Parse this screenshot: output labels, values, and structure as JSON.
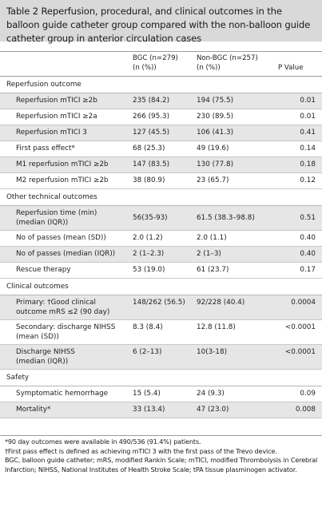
{
  "title": "Table 2   Reperfusion, procedural, and clinical outcomes in the balloon guide catheter group compared with the non-balloon guide catheter group in anterior circulation cases",
  "columns": {
    "bgc": "BGC (n=279) (n (%))",
    "bgc_l1": "BGC (n=279)",
    "bgc_l2": "(n (%))",
    "nonbgc_l1": "Non-BGC (n=257)",
    "nonbgc_l2": "(n (%))",
    "p": "P Value"
  },
  "sections": {
    "reperfusion": "Reperfusion outcome",
    "technical": "Other technical outcomes",
    "clinical": "Clinical outcomes",
    "safety": "Safety"
  },
  "rows": {
    "r1": {
      "label": "Reperfusion mTICI ≥2b",
      "bgc": "235 (84.2)",
      "nonbgc": "194 (75.5)",
      "p": "0.01"
    },
    "r2": {
      "label": "Reperfusion mTICI ≥2a",
      "bgc": "266 (95.3)",
      "nonbgc": "230 (89.5)",
      "p": "0.01"
    },
    "r3": {
      "label": "Reperfusion mTICI 3",
      "bgc": "127 (45.5)",
      "nonbgc": "106 (41.3)",
      "p": "0.41"
    },
    "r4": {
      "label": "First pass effect*",
      "bgc": "68 (25.3)",
      "nonbgc": "49 (19.6)",
      "p": "0.14"
    },
    "r5": {
      "label": "M1 reperfusion mTICI ≥2b",
      "bgc": "147 (83.5)",
      "nonbgc": "130 (77.8)",
      "p": "0.18"
    },
    "r6": {
      "label": "M2 reperfusion mTICI ≥2b",
      "bgc": "38 (80.9)",
      "nonbgc": "23 (65.7)",
      "p": "0.12"
    },
    "t1": {
      "label_l1": "Reperfusion time (min)",
      "label_l2": "(median (IQR))",
      "bgc": "56(35-93)",
      "nonbgc": "61.5 (38.3–98.8)",
      "p": "0.51"
    },
    "t2": {
      "label": "No of passes (mean (SD))",
      "bgc": "2.0 (1.2)",
      "nonbgc": "2.0 (1.1)",
      "p": "0.40"
    },
    "t3": {
      "label": "No of passes (median (IQR))",
      "bgc": "2 (1–2.3)",
      "nonbgc": "2 (1–3)",
      "p": "0.40"
    },
    "t4": {
      "label": "Rescue therapy",
      "bgc": "53 (19.0)",
      "nonbgc": "61 (23.7)",
      "p": "0.17"
    },
    "c1": {
      "label_l1": "Primary: †Good clinical",
      "label_l2": "outcome mRS ≤2 (90 day)",
      "bgc": "148/262 (56.5)",
      "nonbgc": "92/228 (40.4)",
      "p": "0.0004"
    },
    "c2": {
      "label_l1": "Secondary: discharge NIHSS",
      "label_l2": "(mean (SD))",
      "bgc": "8.3 (8.4)",
      "nonbgc": "12.8 (11.8)",
      "p": "<0.0001"
    },
    "c3": {
      "label_l1": "Discharge NIHSS",
      "label_l2": "(median (IQR))",
      "bgc": "6 (2–13)",
      "nonbgc": "10(3-18)",
      "p": "<0.0001"
    },
    "s1": {
      "label": "Symptomatic hemorrhage",
      "bgc": "15 (5.4)",
      "nonbgc": "24 (9.3)",
      "p": "0.09"
    },
    "s2": {
      "label": "Mortality*",
      "bgc": "33 (13.4)",
      "nonbgc": "47 (23.0)",
      "p": "0.008"
    }
  },
  "footnotes": {
    "f1": "*90 day outcomes were available in 490/536 (91.4%) patients.",
    "f2": "†First pass effect is defined as achieving mTICI 3 with the first pass of the Trevo device.",
    "f3": "BGC, balloon guide catheter; mRS, modified Rankin Scale; mTICI, modified Thrombolysis in Cerebral Infarction; NIHSS, National Institutes of Health Stroke Scale; tPA tissue plasminogen activator."
  }
}
